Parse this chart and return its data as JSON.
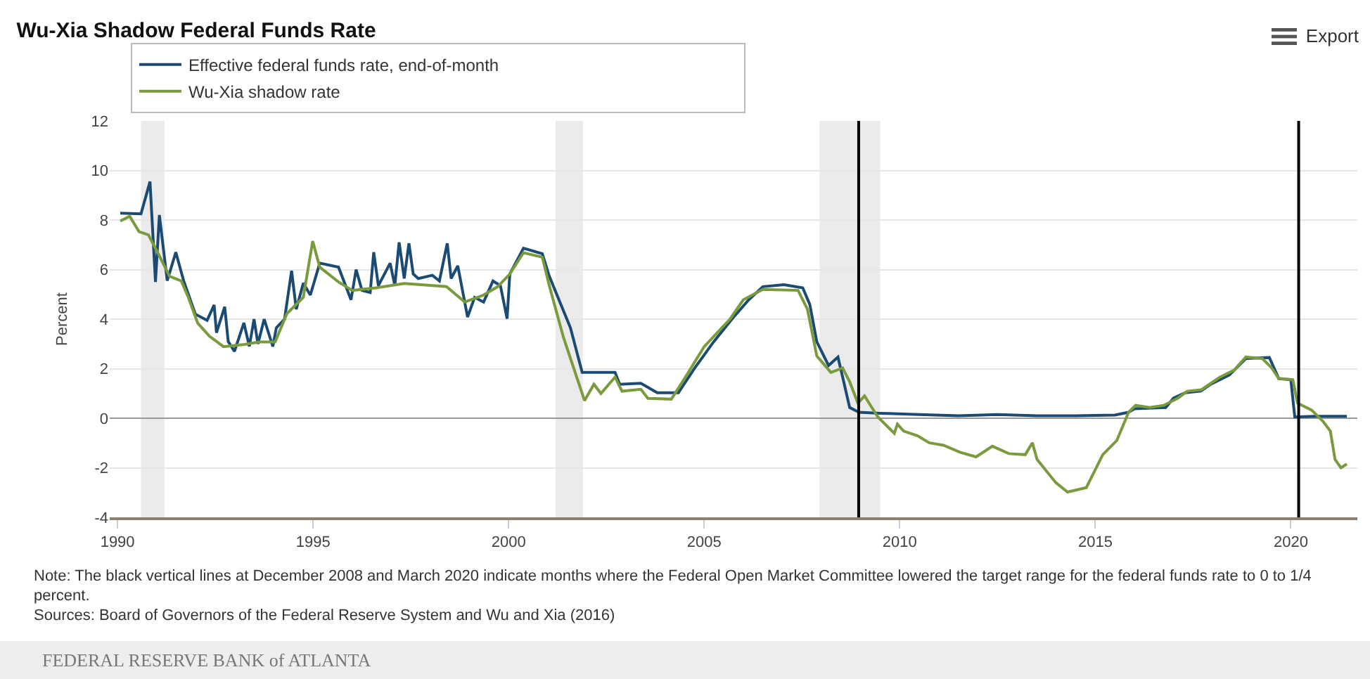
{
  "chart_data": {
    "type": "line",
    "title": "Wu-Xia Shadow Federal Funds Rate",
    "ylabel": "Percent",
    "xlim": [
      1989.8,
      2021.7
    ],
    "xticks": [
      1990,
      1995,
      2000,
      2005,
      2010,
      2015,
      2020
    ],
    "ylim": [
      -4,
      12
    ],
    "yticks": [
      -4,
      -2,
      0,
      2,
      4,
      6,
      8,
      10,
      12
    ],
    "grid": "y",
    "legend": "top",
    "line_style": "solid",
    "marker": "none",
    "series": [
      {
        "name": "Effective federal funds rate, end-of-month",
        "color": "#1b4a72",
        "x": [
          1990.07,
          1990.6,
          1990.83,
          1990.97,
          1991.07,
          1991.27,
          1991.49,
          1991.69,
          1991.99,
          1992.29,
          1992.47,
          1992.53,
          1992.74,
          1992.83,
          1992.99,
          1993.23,
          1993.37,
          1993.49,
          1993.59,
          1993.75,
          1993.97,
          1994.06,
          1994.27,
          1994.45,
          1994.57,
          1994.75,
          1994.93,
          1995.17,
          1995.65,
          1995.97,
          1996.1,
          1996.25,
          1996.46,
          1996.55,
          1996.67,
          1996.97,
          1997.09,
          1997.2,
          1997.33,
          1997.45,
          1997.56,
          1997.69,
          1998.05,
          1998.23,
          1998.43,
          1998.53,
          1998.7,
          1998.95,
          1999.13,
          1999.36,
          1999.6,
          1999.79,
          1999.96,
          2000.03,
          2000.38,
          2000.86,
          2001.04,
          2001.58,
          2001.88,
          2002.0,
          2002.72,
          2002.84,
          2003.38,
          2003.8,
          2004.34,
          2004.76,
          2005.24,
          2005.72,
          2006.14,
          2006.5,
          2007.04,
          2007.52,
          2007.7,
          2007.88,
          2008.18,
          2008.42,
          2008.54,
          2008.72,
          2008.96,
          2009.5,
          2010.5,
          2011.5,
          2012.5,
          2013.5,
          2014.5,
          2015.5,
          2015.85,
          2016.0,
          2016.8,
          2017.0,
          2017.3,
          2017.7,
          2017.95,
          2018.43,
          2018.85,
          2019.45,
          2019.69,
          2020.0,
          2020.1,
          2020.6,
          2021.43
        ],
        "values": [
          8.28,
          8.25,
          9.55,
          5.5,
          8.2,
          5.55,
          6.7,
          5.55,
          4.2,
          3.95,
          4.57,
          3.45,
          4.5,
          3.1,
          2.7,
          3.85,
          2.9,
          4.0,
          3.0,
          4.0,
          2.9,
          3.65,
          4.0,
          5.95,
          4.4,
          5.45,
          4.97,
          6.26,
          6.1,
          4.78,
          6.0,
          5.16,
          5.07,
          6.7,
          5.35,
          6.26,
          5.35,
          7.1,
          5.64,
          7.06,
          5.82,
          5.64,
          5.77,
          5.54,
          7.06,
          5.64,
          6.15,
          4.08,
          4.88,
          4.69,
          5.54,
          5.35,
          4.02,
          5.82,
          6.86,
          6.64,
          5.73,
          3.65,
          1.85,
          1.85,
          1.85,
          1.37,
          1.41,
          1.03,
          1.03,
          2.03,
          3.08,
          4.02,
          4.78,
          5.31,
          5.39,
          5.26,
          4.59,
          3.08,
          2.13,
          2.47,
          1.66,
          0.43,
          0.24,
          0.2,
          0.15,
          0.1,
          0.15,
          0.1,
          0.1,
          0.13,
          0.24,
          0.38,
          0.43,
          0.81,
          1.03,
          1.1,
          1.37,
          1.75,
          2.41,
          2.45,
          1.6,
          1.55,
          0.05,
          0.08,
          0.08
        ]
      },
      {
        "name": "Wu-Xia shadow rate",
        "color": "#7a9a3e",
        "x": [
          1990.07,
          1990.31,
          1990.55,
          1990.79,
          1991.09,
          1991.33,
          1991.63,
          1991.81,
          1992.05,
          1992.35,
          1992.71,
          1993.25,
          1993.61,
          1994.03,
          1994.33,
          1994.75,
          1994.99,
          1995.17,
          1995.65,
          1996.0,
          1996.61,
          1997.33,
          1998.41,
          1998.88,
          1999.36,
          1999.72,
          2000.03,
          2000.38,
          2000.86,
          2001.04,
          2001.4,
          2001.94,
          2002.18,
          2002.36,
          2002.72,
          2002.9,
          2003.38,
          2003.56,
          2004.16,
          2004.52,
          2005.0,
          2005.66,
          2006.0,
          2006.5,
          2007.4,
          2007.64,
          2007.88,
          2008.24,
          2008.54,
          2008.72,
          2008.93,
          2009.1,
          2009.44,
          2009.86,
          2009.94,
          2010.1,
          2010.46,
          2010.75,
          2011.12,
          2011.54,
          2011.95,
          2012.37,
          2012.79,
          2013.21,
          2013.39,
          2013.51,
          2013.99,
          2014.29,
          2014.77,
          2015.19,
          2015.55,
          2015.85,
          2016.03,
          2016.39,
          2016.75,
          2017.11,
          2017.35,
          2017.71,
          2018.19,
          2018.55,
          2018.85,
          2019.27,
          2019.51,
          2019.69,
          2020.05,
          2020.17,
          2020.53,
          2020.83,
          2021.01,
          2021.13,
          2021.28,
          2021.43
        ],
        "values": [
          7.96,
          8.15,
          7.53,
          7.4,
          6.49,
          5.73,
          5.54,
          4.88,
          3.84,
          3.31,
          2.89,
          2.98,
          3.08,
          3.08,
          4.22,
          4.88,
          7.15,
          6.1,
          5.5,
          5.16,
          5.26,
          5.44,
          5.31,
          4.69,
          4.97,
          5.31,
          5.82,
          6.68,
          6.5,
          5.35,
          3.27,
          0.71,
          1.37,
          1.0,
          1.66,
          1.09,
          1.17,
          0.8,
          0.77,
          1.66,
          2.89,
          4.0,
          4.78,
          5.2,
          5.16,
          4.4,
          2.51,
          1.85,
          2.03,
          1.47,
          0.61,
          0.9,
          0.05,
          -0.61,
          -0.24,
          -0.52,
          -0.71,
          -0.99,
          -1.09,
          -1.37,
          -1.56,
          -1.13,
          -1.43,
          -1.47,
          -0.99,
          -1.66,
          -2.6,
          -2.98,
          -2.8,
          -1.47,
          -0.9,
          0.24,
          0.52,
          0.43,
          0.52,
          0.81,
          1.09,
          1.15,
          1.66,
          1.94,
          2.47,
          2.41,
          2.03,
          1.6,
          1.56,
          0.61,
          0.33,
          -0.14,
          -0.52,
          -1.66,
          -2.0,
          -1.85
        ]
      }
    ],
    "bands": [
      {
        "axis": "x",
        "from": 1990.6,
        "to": 1991.2,
        "color": "#ebebeb"
      },
      {
        "axis": "x",
        "from": 2001.2,
        "to": 2001.9,
        "color": "#ebebeb"
      },
      {
        "axis": "x",
        "from": 2007.95,
        "to": 2009.5,
        "color": "#ebebeb"
      }
    ],
    "ref_lines": [
      {
        "axis": "x",
        "value": 2008.95,
        "color": "#000000"
      },
      {
        "axis": "x",
        "value": 2020.2,
        "color": "#000000"
      }
    ],
    "annotations": [
      "Export",
      "Note: The black vertical lines at December 2008 and March 2020 indicate months where the Federal Open Market Committee lowered the target range for the federal funds rate to 0 to 1/4 percent.",
      "Sources: Board of Governors of the Federal Reserve System and Wu and Xia (2016)",
      "FEDERAL RESERVE BANK of ATLANTA"
    ]
  }
}
